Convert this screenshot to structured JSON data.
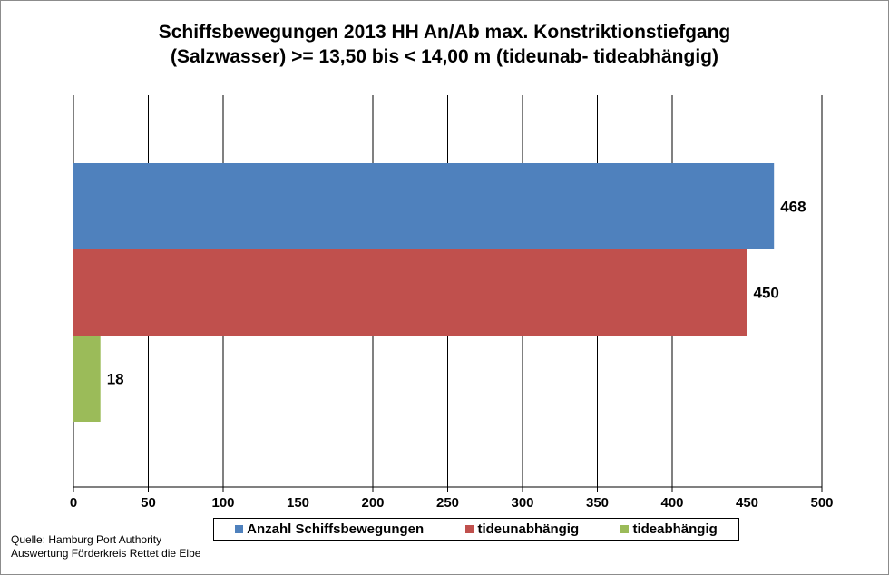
{
  "chart_data": {
    "type": "bar",
    "orientation": "horizontal",
    "title_line1": "Schiffsbewegungen 2013 HH An/Ab max. Konstriktionstiefgang",
    "title_line2": "(Salzwasser) >=  13,50 bis < 14,00 m (tideunab- tideabhängig)",
    "series": [
      {
        "name": "Anzahl Schiffsbewegungen",
        "value": 468,
        "label": "468",
        "color": "#4f81bd"
      },
      {
        "name": "tideunabhängig",
        "value": 450,
        "label": "450",
        "color": "#c0504d"
      },
      {
        "name": "tideabhängig",
        "value": 18,
        "label": "18",
        "color": "#9bbb59"
      }
    ],
    "xlim": [
      0,
      500
    ],
    "ticks": [
      "0",
      "50",
      "100",
      "150",
      "200",
      "250",
      "300",
      "350",
      "400",
      "450",
      "500"
    ],
    "grid": true,
    "legend_position": "bottom"
  },
  "source": {
    "line1": "Quelle: Hamburg Port Authority",
    "line2": "Auswertung Förderkreis Rettet  die Elbe"
  }
}
